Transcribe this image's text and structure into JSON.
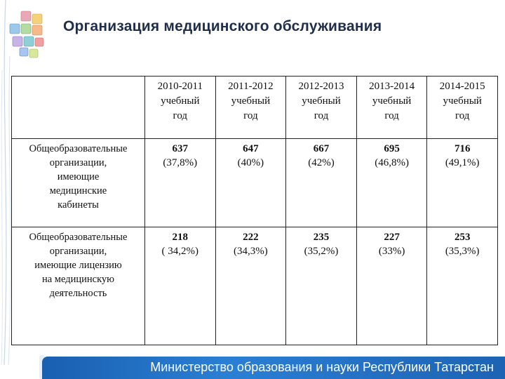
{
  "header": {
    "title": "Организация медицинского обслуживания",
    "logo_icon": "ministry-logo-icon"
  },
  "table": {
    "columns": [
      {
        "year": "2010-2011",
        "l2": "учебный",
        "l3": "год"
      },
      {
        "year": "2011-2012",
        "l2": "учебный",
        "l3": "год"
      },
      {
        "year": "2012-2013",
        "l2": "учебный",
        "l3": "год"
      },
      {
        "year": "2013-2014",
        "l2": "учебный",
        "l3": "год"
      },
      {
        "year": "2014-2015",
        "l2": "учебный",
        "l3": "год"
      }
    ],
    "rows": [
      {
        "label_lines": [
          "Общеобразовательные",
          "организации,",
          "имеющие",
          "медицинские",
          "кабинеты"
        ],
        "cells": [
          {
            "count": "637",
            "pct": "(37,8%)"
          },
          {
            "count": "647",
            "pct": "(40%)"
          },
          {
            "count": "667",
            "pct": "(42%)"
          },
          {
            "count": "695",
            "pct": "(46,8%)"
          },
          {
            "count": "716",
            "pct": "(49,1%)"
          }
        ]
      },
      {
        "label_lines": [
          "Общеобразовательные",
          "организации,",
          "имеющие лицензию",
          "на медицинскую",
          "деятельность"
        ],
        "cells": [
          {
            "count": "218",
            "pct": "( 34,2%)"
          },
          {
            "count": "222",
            "pct": "(34,3%)"
          },
          {
            "count": "235",
            "pct": "(35,2%)"
          },
          {
            "count": "227",
            "pct": "(33%)"
          },
          {
            "count": "253",
            "pct": "(35,3%)"
          }
        ]
      }
    ]
  },
  "footer": {
    "text": "Министерство образования и науки Республики Татарстан"
  }
}
